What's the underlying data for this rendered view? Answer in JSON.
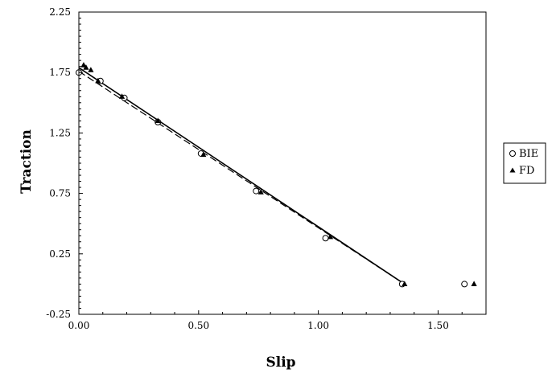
{
  "chart_data": {
    "type": "scatter",
    "title": "",
    "xlabel": "Slip",
    "ylabel": "Traction",
    "xlim": [
      0,
      1.7
    ],
    "ylim": [
      -0.25,
      2.25
    ],
    "x_ticks": [
      0.0,
      0.5,
      1.0,
      1.5
    ],
    "x_tick_labels": [
      "0.00",
      "0.50",
      "1.00",
      "1.50"
    ],
    "y_ticks": [
      -0.25,
      0.25,
      0.75,
      1.25,
      1.75,
      2.25
    ],
    "y_tick_labels": [
      "-0.25",
      "0.25",
      "0.75",
      "1.25",
      "1.75",
      "2.25"
    ],
    "grid": false,
    "legend_position": "right",
    "series": [
      {
        "name": "BIE",
        "marker": "open-circle",
        "color": "#000000",
        "x": [
          0.0,
          0.09,
          0.19,
          0.33,
          0.51,
          0.74,
          1.03,
          1.35,
          1.61
        ],
        "y": [
          1.75,
          1.68,
          1.54,
          1.34,
          1.08,
          0.77,
          0.38,
          0.0,
          0.0
        ]
      },
      {
        "name": "FD",
        "marker": "filled-triangle",
        "color": "#000000",
        "x": [
          0.02,
          0.03,
          0.05,
          0.08,
          0.18,
          0.33,
          0.52,
          0.76,
          1.05,
          1.36,
          1.65
        ],
        "y": [
          1.81,
          1.79,
          1.77,
          1.68,
          1.55,
          1.35,
          1.07,
          0.76,
          0.39,
          0.0,
          0.0
        ]
      }
    ],
    "reference_lines": [
      {
        "style": "solid",
        "color": "#000000",
        "x": [
          0.0,
          1.36
        ],
        "y": [
          1.79,
          0.0
        ]
      },
      {
        "style": "dashed",
        "color": "#000000",
        "x": [
          0.0,
          1.36
        ],
        "y": [
          1.76,
          0.0
        ]
      }
    ]
  }
}
